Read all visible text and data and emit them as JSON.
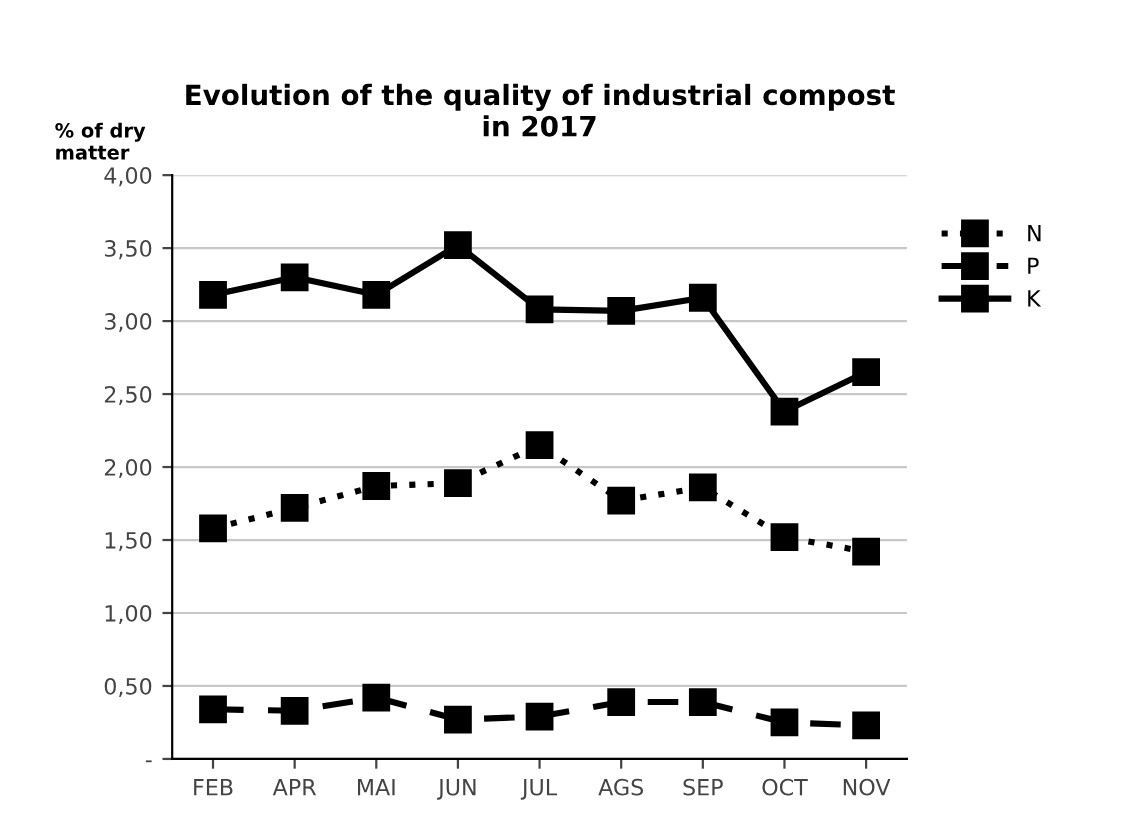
{
  "chart_data": {
    "type": "line",
    "title": "Evolution of the quality of industrial compost\nin 2017",
    "ylabel": "% of dry\nmatter",
    "categories": [
      "FEB",
      "APR",
      "MAI",
      "JUN",
      "JUL",
      "AGS",
      "SEP",
      "OCT",
      "NOV"
    ],
    "series": [
      {
        "name": "N",
        "color": "#000000",
        "line_style": "dotted",
        "values": [
          1.58,
          1.72,
          1.87,
          1.89,
          2.15,
          1.77,
          1.86,
          1.52,
          1.42
        ]
      },
      {
        "name": "P",
        "color": "#000000",
        "line_style": "dashed",
        "values": [
          0.34,
          0.33,
          0.42,
          0.27,
          0.29,
          0.39,
          0.39,
          0.25,
          0.23
        ]
      },
      {
        "name": "K",
        "color": "#000000",
        "line_style": "solid",
        "values": [
          3.18,
          3.3,
          3.18,
          3.52,
          3.08,
          3.07,
          3.16,
          2.38,
          2.65
        ]
      }
    ],
    "marker": "square",
    "ylim": [
      0,
      4
    ],
    "yticks": [
      {
        "value": 0,
        "label": "-"
      },
      {
        "value": 0.5,
        "label": "0,50"
      },
      {
        "value": 1,
        "label": "1,00"
      },
      {
        "value": 1.5,
        "label": "1,50"
      },
      {
        "value": 2,
        "label": "2,00"
      },
      {
        "value": 2.5,
        "label": "2,50"
      },
      {
        "value": 3,
        "label": "3,00"
      },
      {
        "value": 3.5,
        "label": "3,50"
      },
      {
        "value": 4,
        "label": "4,00"
      }
    ],
    "grid": "y",
    "legend": "top right"
  }
}
